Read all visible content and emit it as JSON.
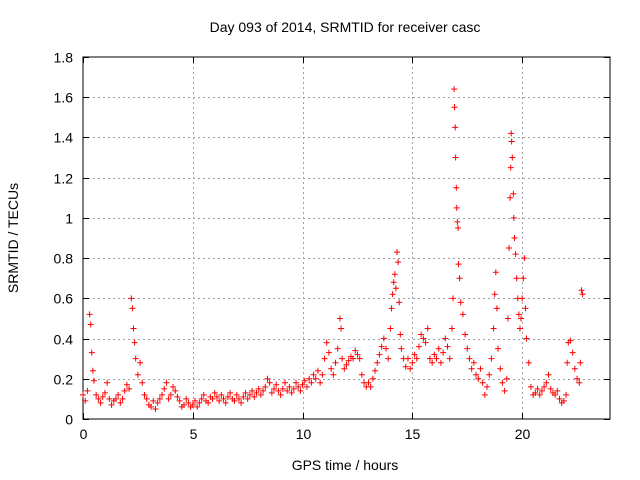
{
  "chart_data": {
    "type": "scatter",
    "title": "Day 093 of 2014, SRMTID for receiver casc",
    "xlabel": "GPS time / hours",
    "ylabel": "SRMTID / TECUs",
    "xlim": [
      0,
      24
    ],
    "ylim": [
      0,
      1.8
    ],
    "xticks": [
      0,
      5,
      10,
      15,
      20
    ],
    "xtick_labels": [
      "0",
      "5",
      "10",
      "15",
      "20"
    ],
    "yticks": [
      0,
      0.2,
      0.4,
      0.6,
      0.8,
      1.0,
      1.2,
      1.4,
      1.6,
      1.8
    ],
    "ytick_labels": [
      "0",
      "0.2",
      "0.4",
      "0.6",
      "0.8",
      "1",
      "1.2",
      "1.4",
      "1.6",
      "1.8"
    ],
    "grid": true,
    "marker": "+",
    "color": "#ff0000",
    "series": [
      {
        "name": "SRMTID",
        "points": [
          [
            0.0,
            0.12
          ],
          [
            0.1,
            0.09
          ],
          [
            0.2,
            0.14
          ],
          [
            0.3,
            0.52
          ],
          [
            0.35,
            0.47
          ],
          [
            0.4,
            0.33
          ],
          [
            0.45,
            0.24
          ],
          [
            0.5,
            0.19
          ],
          [
            0.6,
            0.12
          ],
          [
            0.7,
            0.1
          ],
          [
            0.8,
            0.08
          ],
          [
            0.9,
            0.11
          ],
          [
            1.0,
            0.13
          ],
          [
            1.1,
            0.18
          ],
          [
            1.2,
            0.1
          ],
          [
            1.3,
            0.07
          ],
          [
            1.4,
            0.09
          ],
          [
            1.5,
            0.1
          ],
          [
            1.6,
            0.12
          ],
          [
            1.7,
            0.08
          ],
          [
            1.8,
            0.1
          ],
          [
            1.9,
            0.14
          ],
          [
            2.0,
            0.17
          ],
          [
            2.1,
            0.15
          ],
          [
            2.2,
            0.6
          ],
          [
            2.25,
            0.55
          ],
          [
            2.3,
            0.45
          ],
          [
            2.35,
            0.38
          ],
          [
            2.4,
            0.3
          ],
          [
            2.5,
            0.22
          ],
          [
            2.6,
            0.28
          ],
          [
            2.7,
            0.18
          ],
          [
            2.8,
            0.12
          ],
          [
            2.9,
            0.1
          ],
          [
            3.0,
            0.07
          ],
          [
            3.1,
            0.06
          ],
          [
            3.2,
            0.09
          ],
          [
            3.3,
            0.05
          ],
          [
            3.4,
            0.08
          ],
          [
            3.5,
            0.1
          ],
          [
            3.6,
            0.12
          ],
          [
            3.7,
            0.15
          ],
          [
            3.8,
            0.18
          ],
          [
            3.9,
            0.1
          ],
          [
            4.0,
            0.12
          ],
          [
            4.1,
            0.16
          ],
          [
            4.2,
            0.14
          ],
          [
            4.3,
            0.11
          ],
          [
            4.4,
            0.09
          ],
          [
            4.5,
            0.06
          ],
          [
            4.6,
            0.07
          ],
          [
            4.7,
            0.1
          ],
          [
            4.8,
            0.08
          ],
          [
            4.9,
            0.06
          ],
          [
            5.0,
            0.07
          ],
          [
            5.1,
            0.09
          ],
          [
            5.2,
            0.06
          ],
          [
            5.3,
            0.08
          ],
          [
            5.4,
            0.1
          ],
          [
            5.5,
            0.12
          ],
          [
            5.6,
            0.09
          ],
          [
            5.7,
            0.08
          ],
          [
            5.8,
            0.11
          ],
          [
            5.9,
            0.1
          ],
          [
            6.0,
            0.13
          ],
          [
            6.1,
            0.11
          ],
          [
            6.2,
            0.09
          ],
          [
            6.3,
            0.12
          ],
          [
            6.4,
            0.1
          ],
          [
            6.5,
            0.08
          ],
          [
            6.6,
            0.11
          ],
          [
            6.7,
            0.13
          ],
          [
            6.8,
            0.1
          ],
          [
            6.9,
            0.09
          ],
          [
            7.0,
            0.12
          ],
          [
            7.1,
            0.1
          ],
          [
            7.2,
            0.08
          ],
          [
            7.3,
            0.11
          ],
          [
            7.4,
            0.13
          ],
          [
            7.5,
            0.1
          ],
          [
            7.6,
            0.12
          ],
          [
            7.7,
            0.14
          ],
          [
            7.8,
            0.11
          ],
          [
            7.9,
            0.13
          ],
          [
            8.0,
            0.15
          ],
          [
            8.1,
            0.12
          ],
          [
            8.2,
            0.14
          ],
          [
            8.3,
            0.16
          ],
          [
            8.4,
            0.2
          ],
          [
            8.5,
            0.18
          ],
          [
            8.6,
            0.13
          ],
          [
            8.7,
            0.15
          ],
          [
            8.8,
            0.17
          ],
          [
            8.9,
            0.14
          ],
          [
            9.0,
            0.12
          ],
          [
            9.1,
            0.15
          ],
          [
            9.2,
            0.18
          ],
          [
            9.3,
            0.14
          ],
          [
            9.4,
            0.16
          ],
          [
            9.5,
            0.13
          ],
          [
            9.6,
            0.15
          ],
          [
            9.7,
            0.18
          ],
          [
            9.8,
            0.16
          ],
          [
            9.9,
            0.14
          ],
          [
            10.0,
            0.17
          ],
          [
            10.1,
            0.19
          ],
          [
            10.2,
            0.16
          ],
          [
            10.3,
            0.2
          ],
          [
            10.4,
            0.18
          ],
          [
            10.5,
            0.22
          ],
          [
            10.6,
            0.2
          ],
          [
            10.7,
            0.24
          ],
          [
            10.8,
            0.18
          ],
          [
            10.9,
            0.22
          ],
          [
            11.0,
            0.3
          ],
          [
            11.1,
            0.38
          ],
          [
            11.2,
            0.33
          ],
          [
            11.3,
            0.25
          ],
          [
            11.4,
            0.22
          ],
          [
            11.5,
            0.28
          ],
          [
            11.6,
            0.35
          ],
          [
            11.7,
            0.5
          ],
          [
            11.75,
            0.45
          ],
          [
            11.8,
            0.3
          ],
          [
            11.9,
            0.25
          ],
          [
            12.0,
            0.27
          ],
          [
            12.1,
            0.29
          ],
          [
            12.2,
            0.31
          ],
          [
            12.3,
            0.3
          ],
          [
            12.4,
            0.34
          ],
          [
            12.5,
            0.32
          ],
          [
            12.6,
            0.3
          ],
          [
            12.7,
            0.22
          ],
          [
            12.8,
            0.18
          ],
          [
            12.9,
            0.16
          ],
          [
            13.0,
            0.18
          ],
          [
            13.1,
            0.16
          ],
          [
            13.2,
            0.2
          ],
          [
            13.3,
            0.24
          ],
          [
            13.4,
            0.28
          ],
          [
            13.5,
            0.32
          ],
          [
            13.6,
            0.36
          ],
          [
            13.7,
            0.4
          ],
          [
            13.8,
            0.35
          ],
          [
            13.9,
            0.3
          ],
          [
            14.0,
            0.45
          ],
          [
            14.05,
            0.55
          ],
          [
            14.1,
            0.62
          ],
          [
            14.15,
            0.68
          ],
          [
            14.2,
            0.72
          ],
          [
            14.25,
            0.65
          ],
          [
            14.3,
            0.83
          ],
          [
            14.35,
            0.78
          ],
          [
            14.4,
            0.58
          ],
          [
            14.45,
            0.42
          ],
          [
            14.5,
            0.35
          ],
          [
            14.6,
            0.3
          ],
          [
            14.7,
            0.26
          ],
          [
            14.8,
            0.3
          ],
          [
            14.9,
            0.25
          ],
          [
            15.0,
            0.28
          ],
          [
            15.1,
            0.32
          ],
          [
            15.2,
            0.3
          ],
          [
            15.3,
            0.36
          ],
          [
            15.4,
            0.42
          ],
          [
            15.5,
            0.4
          ],
          [
            15.6,
            0.38
          ],
          [
            15.7,
            0.45
          ],
          [
            15.8,
            0.3
          ],
          [
            15.9,
            0.28
          ],
          [
            16.0,
            0.32
          ],
          [
            16.1,
            0.3
          ],
          [
            16.2,
            0.35
          ],
          [
            16.3,
            0.28
          ],
          [
            16.4,
            0.33
          ],
          [
            16.5,
            0.4
          ],
          [
            16.6,
            0.36
          ],
          [
            16.7,
            0.3
          ],
          [
            16.8,
            0.45
          ],
          [
            16.85,
            0.6
          ],
          [
            16.9,
            1.64
          ],
          [
            16.92,
            1.55
          ],
          [
            16.95,
            1.45
          ],
          [
            16.97,
            1.3
          ],
          [
            17.0,
            1.15
          ],
          [
            17.02,
            1.05
          ],
          [
            17.05,
            0.98
          ],
          [
            17.08,
            0.95
          ],
          [
            17.1,
            0.77
          ],
          [
            17.15,
            0.7
          ],
          [
            17.2,
            0.58
          ],
          [
            17.3,
            0.52
          ],
          [
            17.4,
            0.42
          ],
          [
            17.5,
            0.35
          ],
          [
            17.6,
            0.3
          ],
          [
            17.7,
            0.25
          ],
          [
            17.8,
            0.28
          ],
          [
            17.9,
            0.22
          ],
          [
            18.0,
            0.2
          ],
          [
            18.1,
            0.25
          ],
          [
            18.2,
            0.18
          ],
          [
            18.3,
            0.12
          ],
          [
            18.4,
            0.16
          ],
          [
            18.5,
            0.22
          ],
          [
            18.6,
            0.3
          ],
          [
            18.7,
            0.45
          ],
          [
            18.75,
            0.62
          ],
          [
            18.8,
            0.73
          ],
          [
            18.85,
            0.55
          ],
          [
            18.9,
            0.35
          ],
          [
            19.0,
            0.25
          ],
          [
            19.1,
            0.18
          ],
          [
            19.2,
            0.14
          ],
          [
            19.3,
            0.2
          ],
          [
            19.35,
            0.5
          ],
          [
            19.4,
            0.85
          ],
          [
            19.45,
            1.1
          ],
          [
            19.48,
            1.25
          ],
          [
            19.5,
            1.42
          ],
          [
            19.52,
            1.38
          ],
          [
            19.55,
            1.3
          ],
          [
            19.6,
            1.12
          ],
          [
            19.62,
            1.0
          ],
          [
            19.65,
            0.9
          ],
          [
            19.7,
            0.82
          ],
          [
            19.75,
            0.7
          ],
          [
            19.8,
            0.6
          ],
          [
            19.85,
            0.52
          ],
          [
            19.9,
            0.45
          ],
          [
            19.95,
            0.5
          ],
          [
            20.0,
            0.6
          ],
          [
            20.05,
            0.7
          ],
          [
            20.1,
            0.8
          ],
          [
            20.15,
            0.55
          ],
          [
            20.2,
            0.4
          ],
          [
            20.3,
            0.28
          ],
          [
            20.4,
            0.16
          ],
          [
            20.5,
            0.12
          ],
          [
            20.6,
            0.13
          ],
          [
            20.7,
            0.15
          ],
          [
            20.8,
            0.12
          ],
          [
            20.9,
            0.14
          ],
          [
            21.0,
            0.16
          ],
          [
            21.1,
            0.18
          ],
          [
            21.2,
            0.22
          ],
          [
            21.3,
            0.15
          ],
          [
            21.4,
            0.13
          ],
          [
            21.5,
            0.12
          ],
          [
            21.6,
            0.14
          ],
          [
            21.7,
            0.1
          ],
          [
            21.8,
            0.08
          ],
          [
            21.9,
            0.09
          ],
          [
            22.0,
            0.12
          ],
          [
            22.05,
            0.28
          ],
          [
            22.1,
            0.38
          ],
          [
            22.2,
            0.39
          ],
          [
            22.3,
            0.33
          ],
          [
            22.4,
            0.25
          ],
          [
            22.5,
            0.2
          ],
          [
            22.6,
            0.18
          ],
          [
            22.65,
            0.28
          ],
          [
            22.7,
            0.64
          ],
          [
            22.75,
            0.62
          ]
        ]
      }
    ]
  }
}
